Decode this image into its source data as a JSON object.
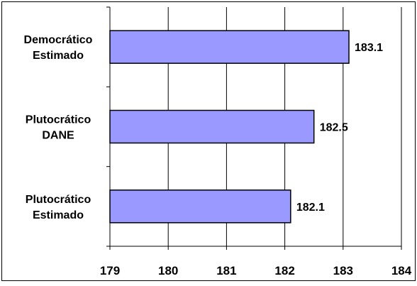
{
  "chart_data": {
    "type": "bar",
    "orientation": "horizontal",
    "title": "",
    "xlabel": "",
    "ylabel": "",
    "categories": [
      [
        "Democrático",
        "Estimado"
      ],
      [
        "Plutocrático",
        "DANE"
      ],
      [
        "Plutocrático",
        "Estimado"
      ]
    ],
    "values": [
      183.1,
      182.5,
      182.1
    ],
    "data_labels": [
      "183.1",
      "182.5",
      "182.1"
    ],
    "xlim": [
      179,
      184
    ],
    "xticks": [
      "179",
      "180",
      "181",
      "182",
      "183",
      "184"
    ],
    "grid": "vertical",
    "legend": "none",
    "colors": {
      "bar_fill": "#9999ff",
      "bar_stroke": "#000000",
      "grid": "#000000",
      "background": "#ffffff"
    }
  }
}
